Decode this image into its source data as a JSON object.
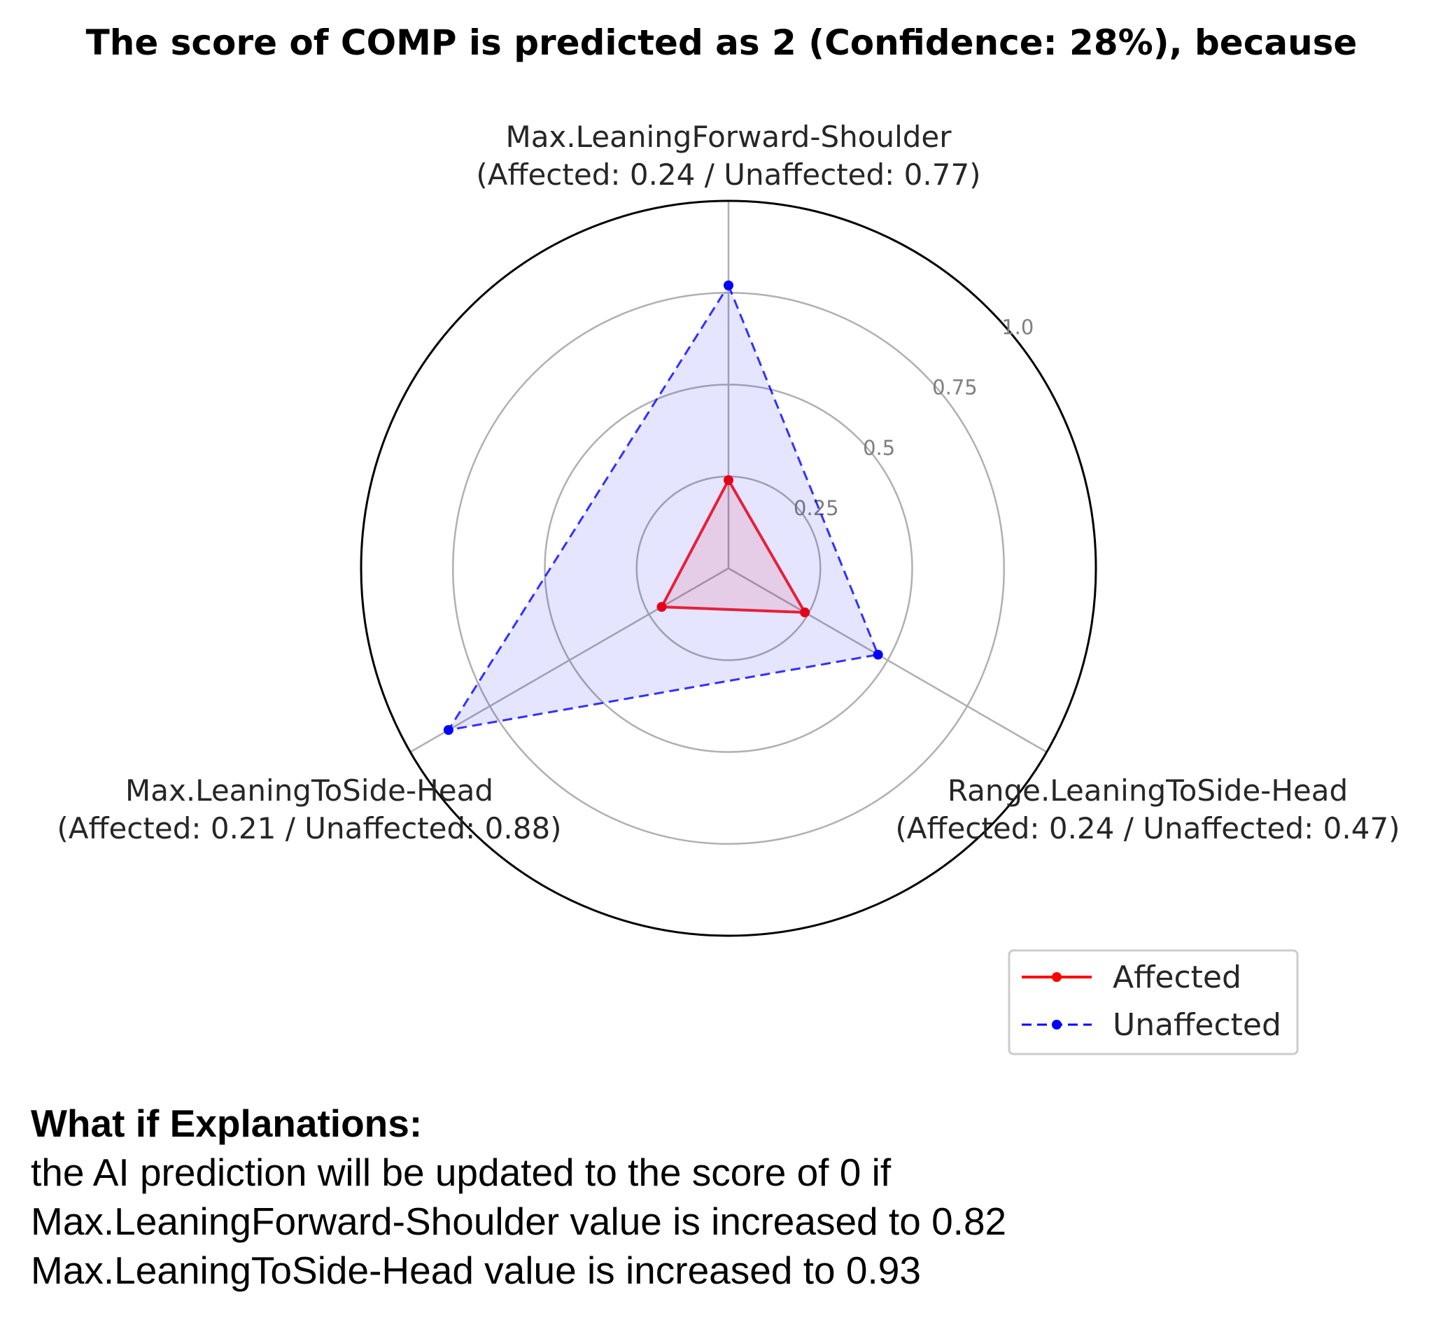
{
  "chart_data": {
    "type": "radar",
    "title": "The score of COMP is predicted as 2 (Confidence: 28%), because",
    "axes": [
      {
        "name": "Max.LeaningForward-Shoulder",
        "detail": "(Affected: 0.24 / Unaffected: 0.77)"
      },
      {
        "name": "Range.LeaningToSide-Head",
        "detail": "(Affected: 0.24 / Unaffected: 0.47)"
      },
      {
        "name": "Max.LeaningToSide-Head",
        "detail": "(Affected: 0.21 / Unaffected: 0.88)"
      }
    ],
    "rticks": [
      "0.25",
      "0.5",
      "0.75",
      "1.0"
    ],
    "rlim": [
      0,
      1.0
    ],
    "series": [
      {
        "name": "Affected",
        "values": [
          0.24,
          0.24,
          0.21
        ],
        "color": "#ff0000",
        "linestyle": "solid"
      },
      {
        "name": "Unaffected",
        "values": [
          0.77,
          0.47,
          0.88
        ],
        "color": "#0000ff",
        "linestyle": "dashed"
      }
    ],
    "legend_position": "bottom-right",
    "grid": true
  },
  "explanation": {
    "heading": "What if Explanations:",
    "lines": [
      "the AI prediction will be updated to the score of 0 if",
      "Max.LeaningForward-Shoulder value is increased to 0.82",
      "Max.LeaningToSide-Head value is increased to 0.93"
    ]
  }
}
